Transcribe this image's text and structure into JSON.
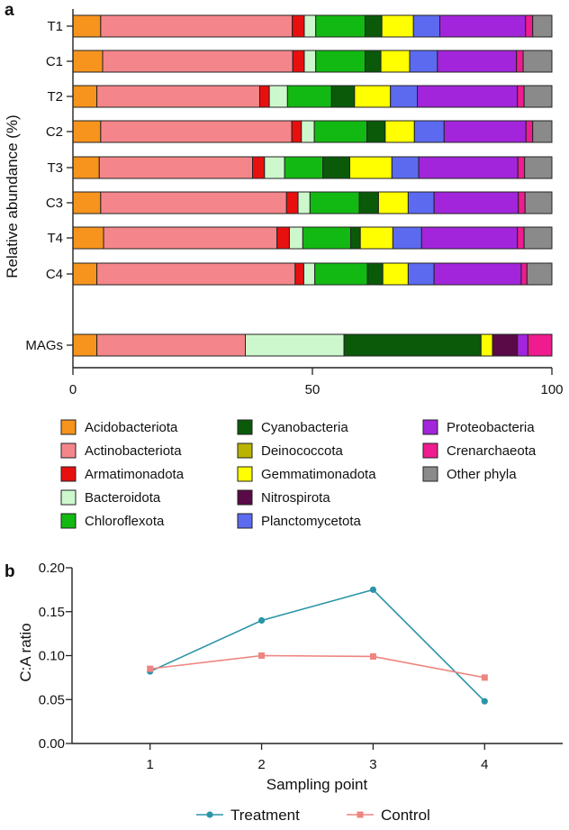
{
  "chart_data": [
    {
      "type": "bar",
      "stacked": true,
      "orientation": "horizontal",
      "panel_label": "a",
      "ylabel": "Relative abundance (%)",
      "xlabel": "",
      "xlim": [
        0,
        100
      ],
      "xticks": [
        0,
        50,
        100
      ],
      "categories": [
        "T1",
        "C1",
        "T2",
        "C2",
        "T3",
        "C3",
        "T4",
        "C4",
        "MAGs"
      ],
      "series": [
        {
          "name": "Acidobacteriota",
          "color": "#F7941D",
          "values": [
            5.8,
            6.2,
            5.0,
            5.8,
            5.5,
            5.8,
            6.4,
            5.0,
            5.0
          ]
        },
        {
          "name": "Actinobacteriota",
          "color": "#F4868B",
          "values": [
            40.0,
            39.7,
            34.0,
            39.9,
            32.0,
            38.8,
            36.2,
            41.4,
            31.0
          ]
        },
        {
          "name": "Armatimonadota",
          "color": "#E8100F",
          "values": [
            2.5,
            2.4,
            2.0,
            2.0,
            2.5,
            2.4,
            2.6,
            1.8,
            0.0
          ]
        },
        {
          "name": "Bacteroidota",
          "color": "#CDF8CD",
          "values": [
            2.4,
            2.4,
            3.8,
            2.7,
            4.2,
            2.5,
            2.8,
            2.3,
            20.6
          ]
        },
        {
          "name": "Chloroflexota",
          "color": "#12B912",
          "values": [
            10.3,
            10.3,
            9.2,
            11.0,
            8.0,
            10.3,
            10.0,
            11.0,
            0.0
          ]
        },
        {
          "name": "Cyanobacteria",
          "color": "#0A5A0A",
          "values": [
            3.5,
            3.3,
            4.8,
            3.8,
            5.6,
            4.0,
            2.0,
            3.2,
            28.6
          ]
        },
        {
          "name": "Deinococcota",
          "color": "#B9B400",
          "values": [
            0,
            0,
            0,
            0,
            0,
            0,
            0,
            0,
            0
          ]
        },
        {
          "name": "Gemmatimonadota",
          "color": "#FFFF00",
          "values": [
            6.6,
            6.0,
            7.5,
            6.1,
            8.8,
            6.2,
            6.8,
            5.3,
            2.4
          ]
        },
        {
          "name": "Nitrospirota",
          "color": "#5A0A46",
          "values": [
            0,
            0,
            0,
            0,
            0,
            0,
            0,
            0,
            5.2
          ]
        },
        {
          "name": "Planctomycetota",
          "color": "#5C6AF0",
          "values": [
            5.5,
            5.8,
            5.6,
            6.2,
            5.6,
            5.4,
            6.0,
            5.4,
            0.0
          ]
        },
        {
          "name": "Proteobacteria",
          "color": "#A225DB",
          "values": [
            17.9,
            16.5,
            20.9,
            17.1,
            20.7,
            17.6,
            20.0,
            18.2,
            2.2
          ]
        },
        {
          "name": "Crenarchaeota",
          "color": "#EE1C8E",
          "values": [
            1.5,
            1.4,
            1.4,
            1.4,
            1.4,
            1.4,
            1.4,
            1.2,
            5.0
          ]
        },
        {
          "name": "Other phyla",
          "color": "#8A8A8A",
          "values": [
            4.0,
            6.0,
            5.8,
            4.0,
            5.7,
            5.6,
            5.8,
            5.2,
            0.0
          ]
        }
      ]
    },
    {
      "type": "line",
      "panel_label": "b",
      "xlabel": "Sampling point",
      "ylabel": "C:A ratio",
      "x": [
        1,
        2,
        3,
        4
      ],
      "xlim": [
        0.3,
        4.7
      ],
      "ylim": [
        0,
        0.2
      ],
      "yticks": [
        "0.00",
        "0.05",
        "0.10",
        "0.15",
        "0.20"
      ],
      "legend_position": "bottom",
      "series": [
        {
          "name": "Treatment",
          "color": "#2B95A8",
          "marker": "circle",
          "values": [
            0.082,
            0.14,
            0.175,
            0.048
          ]
        },
        {
          "name": "Control",
          "color": "#EE8580",
          "marker": "square",
          "values": [
            0.085,
            0.1,
            0.099,
            0.075
          ]
        }
      ]
    }
  ]
}
